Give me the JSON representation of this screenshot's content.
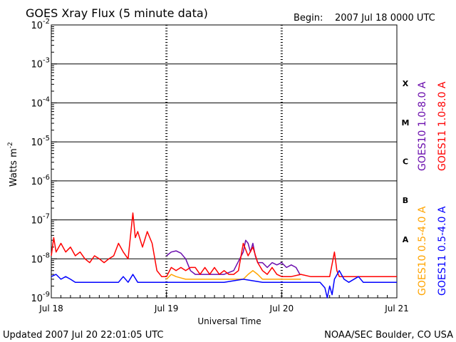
{
  "chart_data": {
    "type": "line",
    "title": "GOES Xray Flux (5 minute data)",
    "begin_label": "Begin:",
    "begin_value": "2007 Jul 18 0000 UTC",
    "xlabel": "Universal Time",
    "ylabel_main": "Watts m",
    "ylabel_sup": "-2",
    "updated": "Updated 2007 Jul 20 22:01:05 UTC",
    "credit": "NOAA/SEC Boulder, CO USA",
    "y_scale": "log",
    "ylim": [
      1e-09,
      0.01
    ],
    "xlim": [
      0,
      72
    ],
    "x_ticks": [
      {
        "h": 0,
        "label": "Jul 18"
      },
      {
        "h": 24,
        "label": "Jul 19"
      },
      {
        "h": 48,
        "label": "Jul 20"
      },
      {
        "h": 72,
        "label": "Jul 21"
      }
    ],
    "y_ticks": [
      {
        "exp": -2,
        "base": "10",
        "sup": "-2"
      },
      {
        "exp": -3,
        "base": "10",
        "sup": "-3"
      },
      {
        "exp": -4,
        "base": "10",
        "sup": "-4"
      },
      {
        "exp": -5,
        "base": "10",
        "sup": "-5"
      },
      {
        "exp": -6,
        "base": "10",
        "sup": "-6"
      },
      {
        "exp": -7,
        "base": "10",
        "sup": "-7"
      },
      {
        "exp": -8,
        "base": "10",
        "sup": "-8"
      },
      {
        "exp": -9,
        "base": "10",
        "sup": "-9"
      }
    ],
    "flare_classes": [
      {
        "label": "X",
        "exp": -3.5
      },
      {
        "label": "M",
        "exp": -4.5
      },
      {
        "label": "C",
        "exp": -5.5
      },
      {
        "label": "B",
        "exp": -6.5
      },
      {
        "label": "A",
        "exp": -7.5
      }
    ],
    "grid": "horizontal decade lines, dotted day separators",
    "legend": "right side, vertical",
    "series": [
      {
        "name": "GOES10 1.0-8.0 A",
        "color": "#6a0dad",
        "points": [
          [
            24,
            1.2e-08
          ],
          [
            25,
            1.5e-08
          ],
          [
            26,
            1.6e-08
          ],
          [
            27,
            1.4e-08
          ],
          [
            28,
            1e-08
          ],
          [
            29,
            5e-09
          ],
          [
            30,
            4e-09
          ],
          [
            32,
            4e-09
          ],
          [
            34,
            4e-09
          ],
          [
            36,
            4e-09
          ],
          [
            38,
            5e-09
          ],
          [
            40,
            1.5e-08
          ],
          [
            40.5,
            3e-08
          ],
          [
            41,
            2.5e-08
          ],
          [
            41.5,
            1.5e-08
          ],
          [
            42,
            2.5e-08
          ],
          [
            42.5,
            1.2e-08
          ],
          [
            43,
            8e-09
          ],
          [
            44,
            8e-09
          ],
          [
            45,
            6e-09
          ],
          [
            46,
            8e-09
          ],
          [
            47,
            7e-09
          ],
          [
            48,
            8e-09
          ],
          [
            49,
            6e-09
          ],
          [
            50,
            7e-09
          ],
          [
            51,
            6e-09
          ],
          [
            51.8,
            4e-09
          ]
        ]
      },
      {
        "name": "GOES11 1.0-8.0 A",
        "color": "#ff0000",
        "points": [
          [
            0,
            1.2e-08
          ],
          [
            0.5,
            3.5e-08
          ],
          [
            1,
            1.5e-08
          ],
          [
            2,
            2.5e-08
          ],
          [
            3,
            1.5e-08
          ],
          [
            4,
            2e-08
          ],
          [
            5,
            1.2e-08
          ],
          [
            6,
            1.5e-08
          ],
          [
            7,
            1e-08
          ],
          [
            8,
            8e-09
          ],
          [
            9,
            1.2e-08
          ],
          [
            10,
            1e-08
          ],
          [
            11,
            8e-09
          ],
          [
            12,
            1e-08
          ],
          [
            13,
            1.2e-08
          ],
          [
            14,
            2.5e-08
          ],
          [
            15,
            1.5e-08
          ],
          [
            16,
            1e-08
          ],
          [
            17,
            1.5e-07
          ],
          [
            17.5,
            3.5e-08
          ],
          [
            18,
            5e-08
          ],
          [
            19,
            2e-08
          ],
          [
            20,
            5e-08
          ],
          [
            21,
            2.5e-08
          ],
          [
            22,
            5e-09
          ],
          [
            23,
            3.5e-09
          ],
          [
            24,
            3.5e-09
          ],
          [
            25,
            6e-09
          ],
          [
            26,
            5e-09
          ],
          [
            27,
            6e-09
          ],
          [
            28,
            5e-09
          ],
          [
            29,
            6e-09
          ],
          [
            30,
            6e-09
          ],
          [
            31,
            4e-09
          ],
          [
            32,
            6e-09
          ],
          [
            33,
            4e-09
          ],
          [
            34,
            6e-09
          ],
          [
            35,
            4e-09
          ],
          [
            36,
            5e-09
          ],
          [
            37,
            4e-09
          ],
          [
            38,
            4e-09
          ],
          [
            39,
            5e-09
          ],
          [
            40,
            2.5e-08
          ],
          [
            41,
            1.2e-08
          ],
          [
            42,
            2e-08
          ],
          [
            43,
            8e-09
          ],
          [
            44,
            5e-09
          ],
          [
            45,
            4e-09
          ],
          [
            46,
            6e-09
          ],
          [
            47,
            4e-09
          ],
          [
            48,
            3.5e-09
          ],
          [
            50,
            3.5e-09
          ],
          [
            52,
            4e-09
          ],
          [
            54,
            3.5e-09
          ],
          [
            58,
            3.5e-09
          ],
          [
            59,
            1.5e-08
          ],
          [
            59.5,
            5e-09
          ],
          [
            60,
            3.5e-09
          ],
          [
            64,
            3.5e-09
          ],
          [
            68,
            3.5e-09
          ],
          [
            72,
            3.5e-09
          ]
        ]
      },
      {
        "name": "GOES10 0.5-4.0 A",
        "color": "#ffa500",
        "points": [
          [
            24,
            3e-09
          ],
          [
            25,
            4e-09
          ],
          [
            26,
            3.5e-09
          ],
          [
            28,
            3e-09
          ],
          [
            30,
            3e-09
          ],
          [
            40,
            3e-09
          ],
          [
            41,
            4e-09
          ],
          [
            42,
            5e-09
          ],
          [
            43,
            4e-09
          ],
          [
            44,
            3e-09
          ],
          [
            48,
            3e-09
          ],
          [
            52,
            3e-09
          ]
        ]
      },
      {
        "name": "GOES11 0.5-4.0 A",
        "color": "#0000ff",
        "points": [
          [
            0,
            3.5e-09
          ],
          [
            1,
            4e-09
          ],
          [
            2,
            3e-09
          ],
          [
            3,
            3.5e-09
          ],
          [
            4,
            3e-09
          ],
          [
            5,
            2.5e-09
          ],
          [
            8,
            2.5e-09
          ],
          [
            12,
            2.5e-09
          ],
          [
            14,
            2.5e-09
          ],
          [
            15,
            3.5e-09
          ],
          [
            16,
            2.5e-09
          ],
          [
            17,
            4e-09
          ],
          [
            18,
            2.5e-09
          ],
          [
            20,
            2.5e-09
          ],
          [
            22,
            2.5e-09
          ],
          [
            24,
            2.5e-09
          ],
          [
            28,
            2.5e-09
          ],
          [
            32,
            2.5e-09
          ],
          [
            36,
            2.5e-09
          ],
          [
            40,
            3e-09
          ],
          [
            44,
            2.5e-09
          ],
          [
            48,
            2.5e-09
          ],
          [
            52,
            2.5e-09
          ],
          [
            56,
            2.5e-09
          ],
          [
            57,
            1.8e-09
          ],
          [
            57.5,
            1e-09
          ],
          [
            58,
            2e-09
          ],
          [
            58.5,
            1.2e-09
          ],
          [
            59,
            3e-09
          ],
          [
            60,
            5e-09
          ],
          [
            61,
            3e-09
          ],
          [
            62,
            2.5e-09
          ],
          [
            64,
            3.5e-09
          ],
          [
            65,
            2.5e-09
          ],
          [
            68,
            2.5e-09
          ],
          [
            72,
            2.5e-09
          ]
        ]
      }
    ]
  }
}
